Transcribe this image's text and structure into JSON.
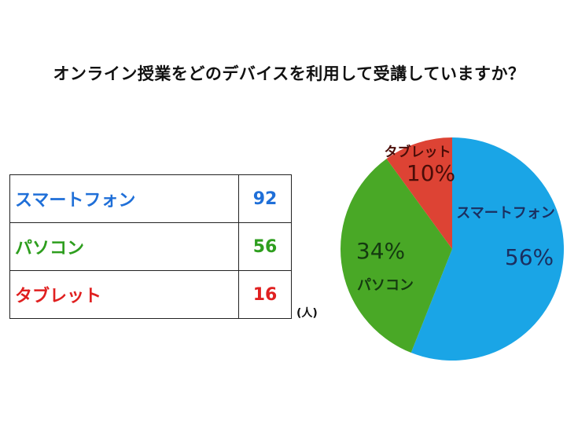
{
  "title": "オンライン授業をどのデバイスを利用して受講していますか？",
  "table": {
    "rows": [
      {
        "label": "スマートフォン",
        "value": "92",
        "color": "#1f6fd8"
      },
      {
        "label": "パソコン",
        "value": "56",
        "color": "#2e9e1e"
      },
      {
        "label": "タブレット",
        "value": "16",
        "color": "#e02020"
      }
    ],
    "unit": "(人)"
  },
  "chart_data": {
    "type": "pie",
    "slices": [
      {
        "label": "スマートフォン",
        "count": 92,
        "percent": 56,
        "percent_label": "56%",
        "color": "#1aa5e6",
        "text_color": "#1b2f60"
      },
      {
        "label": "パソコン",
        "count": 56,
        "percent": 34,
        "percent_label": "34%",
        "color": "#49a826",
        "text_color": "#143a10"
      },
      {
        "label": "タブレット",
        "count": 16,
        "percent": 10,
        "percent_label": "10%",
        "color": "#dd4334",
        "text_color": "#4a0d08"
      }
    ],
    "start_angle_deg": 0,
    "direction": "clockwise"
  }
}
